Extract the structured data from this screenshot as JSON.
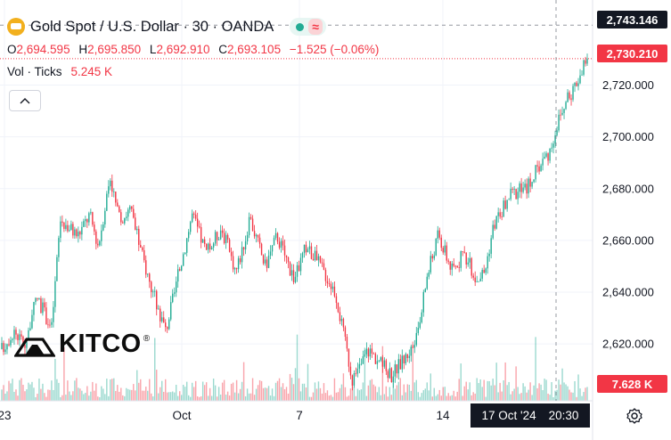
{
  "header": {
    "symbol_title": "Gold Spot / U.S. Dollar · 30 · OANDA",
    "symbol_icon": "gold-bars-icon",
    "status_dot_icon": "market-open-dot-icon",
    "status_wave_icon": "≈"
  },
  "ohlc": {
    "o_label": "O",
    "o_value": "2,694.595",
    "h_label": "H",
    "h_value": "2,695.850",
    "l_label": "L",
    "l_value": "2,692.910",
    "c_label": "C",
    "c_value": "2,693.105",
    "change": "−1.525 (−0.06%)"
  },
  "volume": {
    "label": "Vol · Ticks",
    "value": "5.245 K"
  },
  "logo": {
    "text": "KITCO",
    "reg": "®"
  },
  "price_tags": {
    "crosshair": "2,743.146",
    "last": "2,730.210",
    "volume": "7.628 K"
  },
  "crosshair_label": {
    "date": "17 Oct '24",
    "time": "20:30"
  },
  "colors": {
    "up": "#22ab94",
    "down": "#f23645",
    "grid": "#f0f3fa",
    "text": "#131722",
    "dark": "#131722"
  },
  "chart_data": {
    "type": "candlestick",
    "title": "Gold Spot / U.S. Dollar · 30 · OANDA",
    "y_ticks": [
      2620,
      2640,
      2660,
      2680,
      2700,
      2720
    ],
    "y_tick_labels": [
      "2,620.000",
      "2,640.000",
      "2,660.000",
      "2,680.000",
      "2,700.000",
      "2,720.000"
    ],
    "x_tick_labels": [
      "23",
      "Oct",
      "7",
      "14"
    ],
    "ylim": [
      2598,
      2746
    ],
    "price_path": [
      [
        0,
        2618
      ],
      [
        0.02,
        2625
      ],
      [
        0.04,
        2620
      ],
      [
        0.06,
        2638
      ],
      [
        0.085,
        2626
      ],
      [
        0.1,
        2668
      ],
      [
        0.13,
        2662
      ],
      [
        0.15,
        2670
      ],
      [
        0.165,
        2658
      ],
      [
        0.185,
        2685
      ],
      [
        0.2,
        2668
      ],
      [
        0.22,
        2672
      ],
      [
        0.235,
        2658
      ],
      [
        0.255,
        2642
      ],
      [
        0.28,
        2625
      ],
      [
        0.3,
        2645
      ],
      [
        0.325,
        2670
      ],
      [
        0.35,
        2655
      ],
      [
        0.375,
        2665
      ],
      [
        0.4,
        2648
      ],
      [
        0.425,
        2668
      ],
      [
        0.45,
        2650
      ],
      [
        0.47,
        2662
      ],
      [
        0.5,
        2645
      ],
      [
        0.52,
        2658
      ],
      [
        0.545,
        2650
      ],
      [
        0.57,
        2640
      ],
      [
        0.58,
        2628
      ],
      [
        0.6,
        2605
      ],
      [
        0.625,
        2618
      ],
      [
        0.65,
        2612
      ],
      [
        0.665,
        2608
      ],
      [
        0.69,
        2615
      ],
      [
        0.71,
        2622
      ],
      [
        0.725,
        2645
      ],
      [
        0.745,
        2662
      ],
      [
        0.77,
        2648
      ],
      [
        0.79,
        2655
      ],
      [
        0.81,
        2645
      ],
      [
        0.825,
        2648
      ],
      [
        0.84,
        2666
      ],
      [
        0.87,
        2678
      ],
      [
        0.895,
        2680
      ],
      [
        0.92,
        2690
      ],
      [
        0.935,
        2694
      ],
      [
        0.95,
        2706
      ],
      [
        0.97,
        2716
      ],
      [
        1.0,
        2730
      ]
    ],
    "last_price": 2730.21,
    "crosshair_price": 2743.146,
    "volume_last": "7.628 K"
  }
}
